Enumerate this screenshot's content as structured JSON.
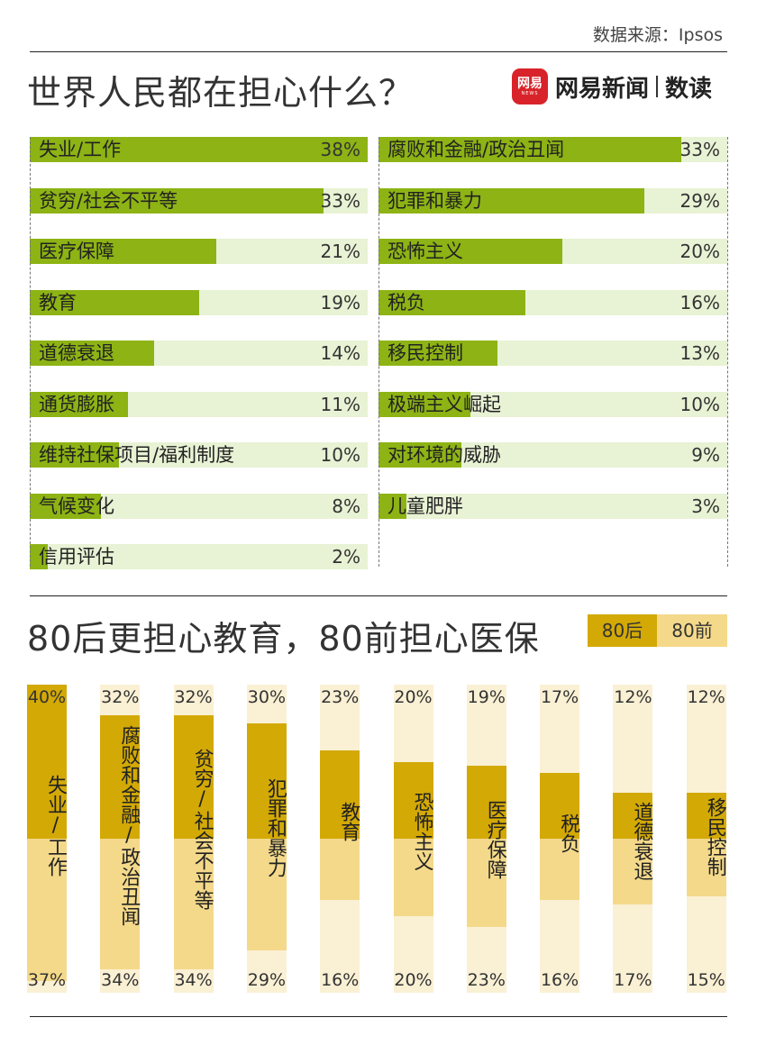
{
  "source_label": "数据来源：Ipsos",
  "title": "世界人民都在担心什么？",
  "brand": {
    "logo_main": "网易",
    "logo_sub": "NEWS",
    "name": "网易新闻",
    "sub": "数读"
  },
  "colors": {
    "bar": "#8db314",
    "bar_track": "#e8f2d4",
    "after80": "#d3a906",
    "before80": "#f4d98a",
    "col_track": "#faf0d4"
  },
  "chart_data": [
    {
      "type": "bar",
      "title": "世界人民都在担心什么？",
      "xlim": [
        0,
        38
      ],
      "left": [
        {
          "label": "失业/工作",
          "value": 38,
          "text": "38%"
        },
        {
          "label": "贫穷/社会不平等",
          "value": 33,
          "text": "33%"
        },
        {
          "label": "医疗保障",
          "value": 21,
          "text": "21%"
        },
        {
          "label": "教育",
          "value": 19,
          "text": "19%"
        },
        {
          "label": "道德衰退",
          "value": 14,
          "text": "14%"
        },
        {
          "label": "通货膨胀",
          "value": 11,
          "text": "11%"
        },
        {
          "label": "维持社保项目/福利制度",
          "value": 10,
          "text": "10%"
        },
        {
          "label": "气候变化",
          "value": 8,
          "text": "8%"
        },
        {
          "label": "信用评估",
          "value": 2,
          "text": "2%"
        }
      ],
      "right": [
        {
          "label": "腐败和金融/政治丑闻",
          "value": 33,
          "text": "33%"
        },
        {
          "label": "犯罪和暴力",
          "value": 29,
          "text": "29%"
        },
        {
          "label": "恐怖主义",
          "value": 20,
          "text": "20%"
        },
        {
          "label": "税负",
          "value": 16,
          "text": "16%"
        },
        {
          "label": "移民控制",
          "value": 13,
          "text": "13%"
        },
        {
          "label": "极端主义崛起",
          "value": 10,
          "text": "10%"
        },
        {
          "label": "对环境的威胁",
          "value": 9,
          "text": "9%"
        },
        {
          "label": "儿童肥胖",
          "value": 3,
          "text": "3%"
        }
      ]
    },
    {
      "type": "bar",
      "title": "80后更担心教育，80前担心医保",
      "ylim": [
        0,
        40
      ],
      "legend": [
        "80后",
        "80前"
      ],
      "legend_position": "top-right",
      "categories": [
        {
          "label": "失业/工作",
          "after80": 40,
          "before80": 37,
          "top": "40%",
          "bottom": "37%"
        },
        {
          "label": "腐败和金融/政治丑闻",
          "after80": 32,
          "before80": 34,
          "top": "32%",
          "bottom": "34%"
        },
        {
          "label": "贫穷/社会不平等",
          "after80": 32,
          "before80": 34,
          "top": "32%",
          "bottom": "34%"
        },
        {
          "label": "犯罪和暴力",
          "after80": 30,
          "before80": 29,
          "top": "30%",
          "bottom": "29%"
        },
        {
          "label": "教育",
          "after80": 23,
          "before80": 16,
          "top": "23%",
          "bottom": "16%"
        },
        {
          "label": "恐怖主义",
          "after80": 20,
          "before80": 20,
          "top": "20%",
          "bottom": "20%"
        },
        {
          "label": "医疗保障",
          "after80": 19,
          "before80": 23,
          "top": "19%",
          "bottom": "23%"
        },
        {
          "label": "税负",
          "after80": 17,
          "before80": 16,
          "top": "17%",
          "bottom": "16%"
        },
        {
          "label": "道德衰退",
          "after80": 12,
          "before80": 17,
          "top": "12%",
          "bottom": "17%"
        },
        {
          "label": "移民控制",
          "after80": 12,
          "before80": 15,
          "top": "12%",
          "bottom": "15%"
        }
      ]
    }
  ]
}
